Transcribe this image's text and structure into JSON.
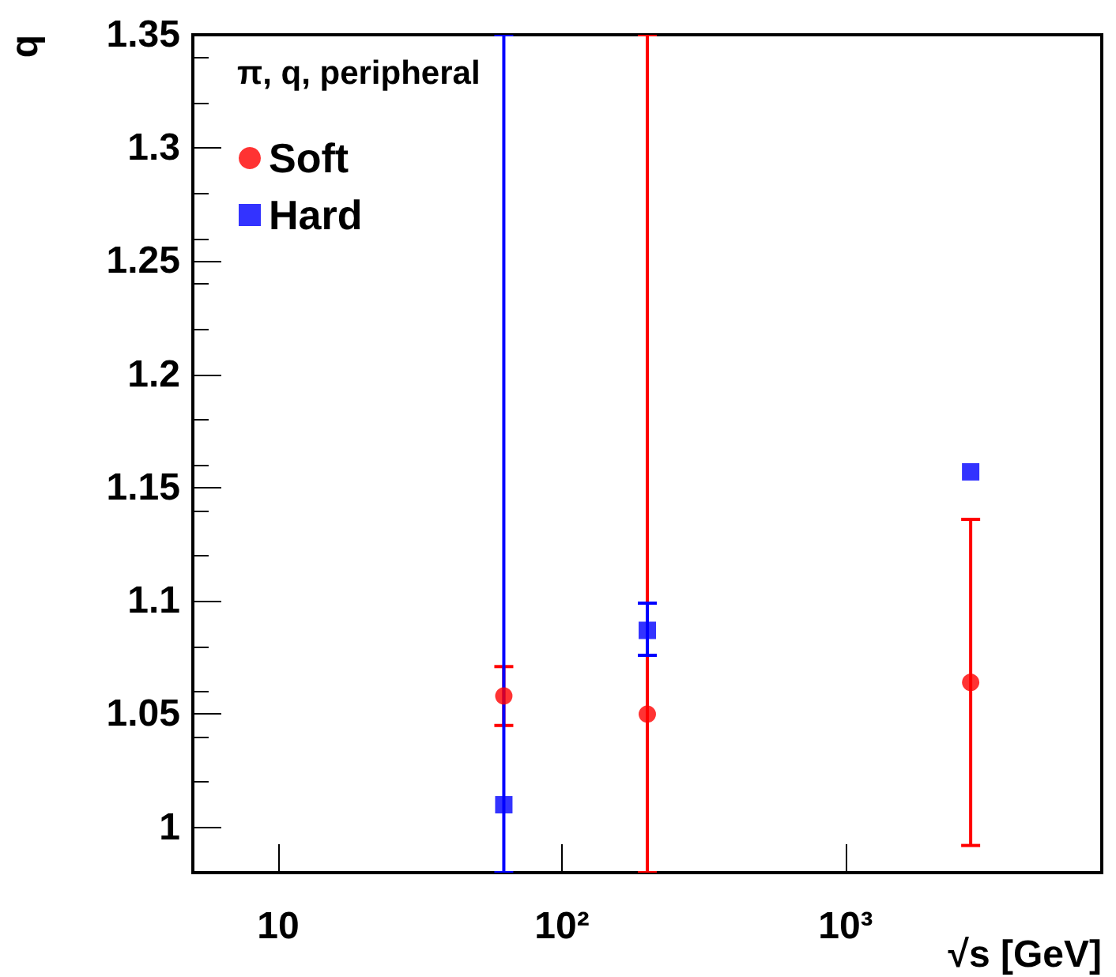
{
  "chart_data": {
    "type": "scatter",
    "xlabel": "√s [GeV]",
    "ylabel": "q",
    "legend_title": "π, q, peripheral",
    "log": "x",
    "xlim": [
      5,
      8000
    ],
    "xticks": [
      {
        "value": 10,
        "label": "10"
      },
      {
        "value": 100,
        "label": "10²"
      },
      {
        "value": 1000,
        "label": "10³"
      }
    ],
    "ylim": [
      0.98,
      1.35
    ],
    "yticks": [
      1,
      1.05,
      1.1,
      1.15,
      1.2,
      1.25,
      1.3,
      1.35
    ],
    "grid": false,
    "legend": "top left",
    "series": [
      {
        "name": "Soft",
        "color": "#ff0000",
        "marker": "circle",
        "x": [
          62.4,
          200,
          2760
        ],
        "values": [
          1.058,
          1.05,
          1.064
        ],
        "errors": [
          [
            1.045,
            1.071
          ],
          [
            0.98,
            1.35
          ],
          [
            0.992,
            1.136
          ]
        ]
      },
      {
        "name": "Hard",
        "color": "#0000ff",
        "marker": "square",
        "x": [
          62.4,
          200,
          2760
        ],
        "values": [
          1.01,
          1.087,
          1.157
        ],
        "errors": [
          [
            0.98,
            1.35
          ],
          [
            1.076,
            1.099
          ],
          null
        ]
      }
    ]
  }
}
